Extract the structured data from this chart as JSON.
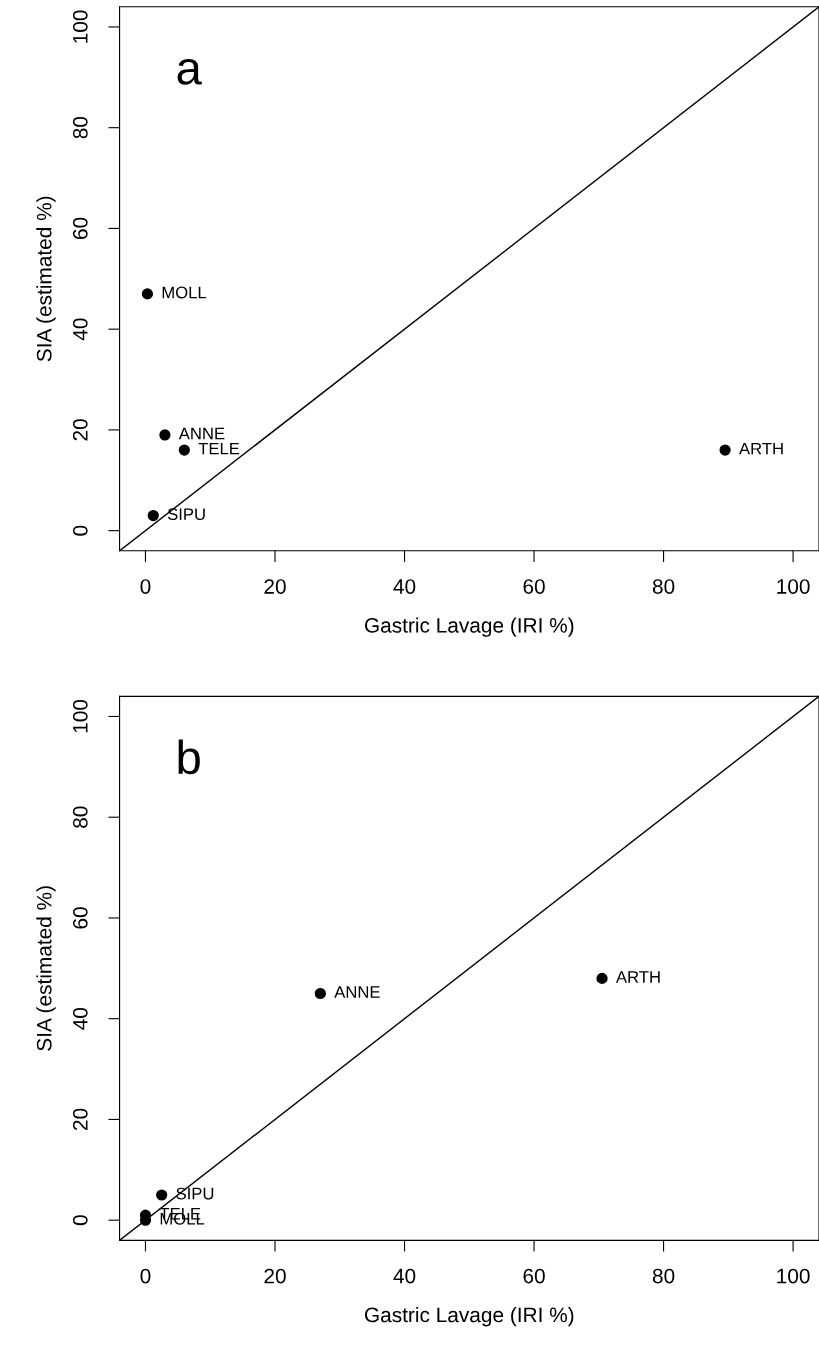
{
  "chart_data": [
    {
      "type": "scatter",
      "xlabel": "Gastric Lavage (IRI %)",
      "ylabel": "SIA (estimated %)",
      "xlim": [
        -4,
        104
      ],
      "ylim": [
        -4,
        104
      ],
      "xticks": [
        0,
        20,
        40,
        60,
        80,
        100
      ],
      "yticks": [
        0,
        20,
        40,
        60,
        80,
        100
      ],
      "grid": false,
      "legend": false,
      "series": [
        {
          "color": "#000000",
          "marker": "circle",
          "x": [
            0.3,
            3,
            6,
            1.2,
            89.5
          ],
          "values": [
            47,
            19,
            16,
            3,
            16
          ]
        },
        {
          "type": "line",
          "color": "#000000",
          "x": [
            -4,
            104
          ],
          "values": [
            -4,
            104
          ]
        }
      ],
      "annotations": [
        "a",
        {
          "text": "MOLL",
          "x": 0.3,
          "y": 47
        },
        {
          "text": "ANNE",
          "x": 3,
          "y": 19
        },
        {
          "text": "TELE",
          "x": 6,
          "y": 16
        },
        {
          "text": "SIPU",
          "x": 1.2,
          "y": 3
        },
        {
          "text": "ARTH",
          "x": 89.5,
          "y": 16
        }
      ]
    },
    {
      "type": "scatter",
      "xlabel": "Gastric Lavage (IRI %)",
      "ylabel": "SIA (estimated %)",
      "xlim": [
        -4,
        104
      ],
      "ylim": [
        -4,
        104
      ],
      "xticks": [
        0,
        20,
        40,
        60,
        80,
        100
      ],
      "yticks": [
        0,
        20,
        40,
        60,
        80,
        100
      ],
      "grid": false,
      "legend": false,
      "series": [
        {
          "color": "#000000",
          "marker": "circle",
          "x": [
            27,
            70.5,
            2.5,
            0,
            0
          ],
          "values": [
            45,
            48,
            5,
            1,
            0
          ]
        },
        {
          "type": "line",
          "color": "#000000",
          "x": [
            -4,
            104
          ],
          "values": [
            -4,
            104
          ]
        }
      ],
      "annotations": [
        "b",
        {
          "text": "ANNE",
          "x": 27,
          "y": 45
        },
        {
          "text": "ARTH",
          "x": 70.5,
          "y": 48
        },
        {
          "text": "SIPU",
          "x": 2.5,
          "y": 5
        },
        {
          "text": "TELE",
          "x": 0,
          "y": 1
        },
        {
          "text": "MOLL",
          "x": 0,
          "y": 0
        }
      ]
    }
  ]
}
